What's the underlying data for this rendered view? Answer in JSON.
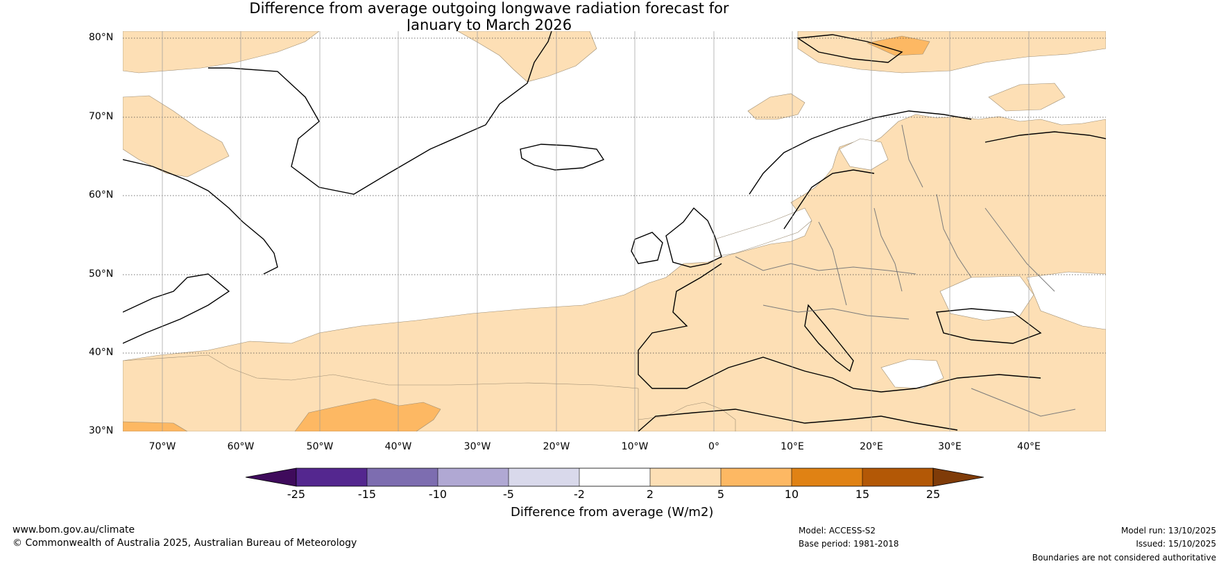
{
  "title": {
    "line1": "Difference from average outgoing longwave radiation forecast for",
    "line2": "January to March 2026"
  },
  "map": {
    "lat_labels": [
      "80°N",
      "70°N",
      "60°N",
      "50°N",
      "40°N",
      "30°N"
    ],
    "lon_labels": [
      "70°W",
      "60°W",
      "50°W",
      "40°W",
      "30°W",
      "20°W",
      "10°W",
      "0°",
      "10°E",
      "20°E",
      "30°E",
      "40°E"
    ]
  },
  "colorbar": {
    "ticks": [
      "-25",
      "-15",
      "-10",
      "-5",
      "-2",
      "2",
      "5",
      "10",
      "15",
      "25"
    ],
    "colors": [
      "#3f0b5c",
      "#54278f",
      "#7d6db0",
      "#b0a8d3",
      "#d9d9eb",
      "#ffffff",
      "#fddfb5",
      "#fdb863",
      "#e08214",
      "#b35806",
      "#7f3b08"
    ],
    "label": "Difference from average (W/m2)"
  },
  "footer": {
    "website": "www.bom.gov.au/climate",
    "copyright": "© Commonwealth of Australia 2025, Australian Bureau of Meteorology",
    "model": "Model: ACCESS-S2",
    "base_period": "Base period: 1981-2018",
    "model_run": "Model run: 13/10/2025",
    "issued": "Issued: 15/10/2025",
    "disclaimer": "Boundaries are not considered authoritative"
  }
}
